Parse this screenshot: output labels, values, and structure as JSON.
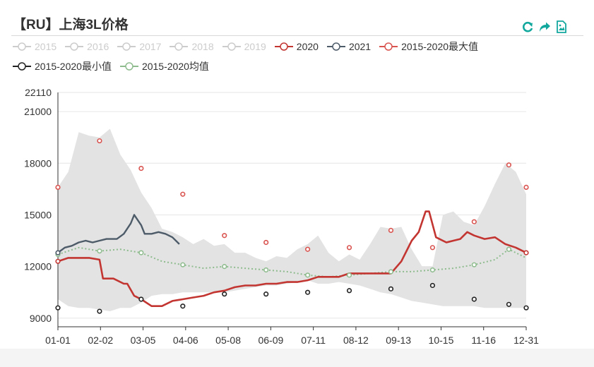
{
  "title": "【RU】上海3L价格",
  "toolbox": {
    "icons": [
      "restore-icon",
      "data-view-icon",
      "save-as-image-icon"
    ],
    "color": "#13a89e"
  },
  "legend": [
    {
      "name": "2015",
      "color": "#cccccc",
      "active": false
    },
    {
      "name": "2016",
      "color": "#cccccc",
      "active": false
    },
    {
      "name": "2017",
      "color": "#cccccc",
      "active": false
    },
    {
      "name": "2018",
      "color": "#cccccc",
      "active": false
    },
    {
      "name": "2019",
      "color": "#cccccc",
      "active": false
    },
    {
      "name": "2020",
      "color": "#c23531",
      "active": true
    },
    {
      "name": "2021",
      "color": "#4d5b69",
      "active": true
    },
    {
      "name": "2015-2020最大值",
      "color": "#d9534f",
      "active": true
    },
    {
      "name": "2015-2020最小值",
      "color": "#222222",
      "active": true
    },
    {
      "name": "2015-2020均值",
      "color": "#8fbc8f",
      "active": true
    }
  ],
  "chart_data": {
    "type": "line",
    "x_categories": [
      "01-01",
      "02-02",
      "03-05",
      "04-06",
      "05-08",
      "06-09",
      "07-11",
      "08-12",
      "09-13",
      "10-15",
      "11-16",
      "12-31"
    ],
    "y_ticks": [
      9000,
      12000,
      15000,
      18000,
      21000,
      22110
    ],
    "ylim": [
      8500,
      22110
    ],
    "grid": true,
    "band": {
      "name": "2015-2020范围",
      "color": "#e3e3e3",
      "upper": [
        [
          0,
          16600
        ],
        [
          3,
          17500
        ],
        [
          6,
          19800
        ],
        [
          9,
          19600
        ],
        [
          12,
          19500
        ],
        [
          15,
          20000
        ],
        [
          18,
          18500
        ],
        [
          21,
          17600
        ],
        [
          24,
          16300
        ],
        [
          27,
          15400
        ],
        [
          30,
          14200
        ],
        [
          33,
          14000
        ],
        [
          36,
          13700
        ],
        [
          39,
          13300
        ],
        [
          42,
          13600
        ],
        [
          45,
          13200
        ],
        [
          48,
          13300
        ],
        [
          51,
          12800
        ],
        [
          54,
          12800
        ],
        [
          57,
          12500
        ],
        [
          60,
          12300
        ],
        [
          63,
          12600
        ],
        [
          66,
          12500
        ],
        [
          69,
          13000
        ],
        [
          72,
          13300
        ],
        [
          75,
          13800
        ],
        [
          78,
          12800
        ],
        [
          81,
          12300
        ],
        [
          84,
          12700
        ],
        [
          87,
          12400
        ],
        [
          90,
          13300
        ],
        [
          93,
          14300
        ],
        [
          96,
          14200
        ],
        [
          99,
          14300
        ],
        [
          102,
          13000
        ],
        [
          105,
          12000
        ],
        [
          108,
          12000
        ],
        [
          111,
          15000
        ],
        [
          114,
          15200
        ],
        [
          117,
          14600
        ],
        [
          120,
          14400
        ],
        [
          123,
          15500
        ],
        [
          126,
          16800
        ],
        [
          129,
          18000
        ],
        [
          132,
          17500
        ],
        [
          135,
          16200
        ]
      ],
      "lower": [
        [
          0,
          10100
        ],
        [
          3,
          9700
        ],
        [
          6,
          9600
        ],
        [
          9,
          9600
        ],
        [
          12,
          9500
        ],
        [
          15,
          9400
        ],
        [
          18,
          9600
        ],
        [
          21,
          9600
        ],
        [
          24,
          9900
        ],
        [
          27,
          10300
        ],
        [
          30,
          10400
        ],
        [
          33,
          10400
        ],
        [
          36,
          10500
        ],
        [
          39,
          10500
        ],
        [
          42,
          10500
        ],
        [
          45,
          10500
        ],
        [
          48,
          10500
        ],
        [
          51,
          10600
        ],
        [
          54,
          10700
        ],
        [
          57,
          10800
        ],
        [
          60,
          10900
        ],
        [
          63,
          10900
        ],
        [
          66,
          11000
        ],
        [
          69,
          11100
        ],
        [
          72,
          11200
        ],
        [
          75,
          11000
        ],
        [
          78,
          11000
        ],
        [
          81,
          11100
        ],
        [
          84,
          11000
        ],
        [
          87,
          10900
        ],
        [
          90,
          10700
        ],
        [
          93,
          10500
        ],
        [
          96,
          10400
        ],
        [
          99,
          10200
        ],
        [
          102,
          10000
        ],
        [
          105,
          9900
        ],
        [
          108,
          9800
        ],
        [
          111,
          9700
        ],
        [
          114,
          9700
        ],
        [
          117,
          9700
        ],
        [
          120,
          9700
        ],
        [
          123,
          9600
        ],
        [
          126,
          9600
        ],
        [
          129,
          9600
        ],
        [
          132,
          9600
        ],
        [
          135,
          9600
        ]
      ]
    },
    "series": [
      {
        "name": "2020",
        "color": "#c23531",
        "points": [
          [
            0,
            12300
          ],
          [
            3,
            12500
          ],
          [
            6,
            12500
          ],
          [
            9,
            12500
          ],
          [
            12,
            12400
          ],
          [
            13,
            11300
          ],
          [
            16,
            11300
          ],
          [
            19,
            11000
          ],
          [
            20,
            11000
          ],
          [
            22,
            10300
          ],
          [
            24,
            10100
          ],
          [
            27,
            9700
          ],
          [
            30,
            9700
          ],
          [
            33,
            10000
          ],
          [
            36,
            10100
          ],
          [
            39,
            10200
          ],
          [
            42,
            10300
          ],
          [
            45,
            10500
          ],
          [
            48,
            10600
          ],
          [
            51,
            10800
          ],
          [
            54,
            10900
          ],
          [
            57,
            10900
          ],
          [
            60,
            11000
          ],
          [
            63,
            11000
          ],
          [
            66,
            11100
          ],
          [
            69,
            11100
          ],
          [
            72,
            11200
          ],
          [
            75,
            11400
          ],
          [
            78,
            11400
          ],
          [
            81,
            11400
          ],
          [
            84,
            11600
          ],
          [
            87,
            11600
          ],
          [
            90,
            11600
          ],
          [
            93,
            11600
          ],
          [
            96,
            11600
          ],
          [
            99,
            12300
          ],
          [
            102,
            13500
          ],
          [
            104,
            14000
          ],
          [
            106,
            15200
          ],
          [
            107,
            15200
          ],
          [
            109,
            13700
          ],
          [
            112,
            13400
          ],
          [
            114,
            13500
          ],
          [
            116,
            13600
          ],
          [
            118,
            14000
          ],
          [
            120,
            13800
          ],
          [
            123,
            13600
          ],
          [
            126,
            13700
          ],
          [
            129,
            13300
          ],
          [
            132,
            13100
          ],
          [
            135,
            12800
          ]
        ]
      },
      {
        "name": "2021",
        "color": "#4d5b69",
        "points": [
          [
            0,
            12800
          ],
          [
            2,
            13100
          ],
          [
            4,
            13200
          ],
          [
            6,
            13400
          ],
          [
            8,
            13500
          ],
          [
            10,
            13400
          ],
          [
            12,
            13500
          ],
          [
            14,
            13600
          ],
          [
            17,
            13600
          ],
          [
            19,
            13900
          ],
          [
            21,
            14500
          ],
          [
            22,
            15000
          ],
          [
            24,
            14400
          ],
          [
            25,
            13900
          ],
          [
            27,
            13900
          ],
          [
            29,
            14000
          ],
          [
            31,
            13900
          ],
          [
            33,
            13700
          ],
          [
            35,
            13300
          ]
        ]
      },
      {
        "name": "2015-2020最大值",
        "color": "#d9534f",
        "marker_points": [
          [
            0,
            16600
          ],
          [
            12,
            19300
          ],
          [
            24,
            17700
          ],
          [
            36,
            16200
          ],
          [
            48,
            13800
          ],
          [
            60,
            13400
          ],
          [
            72,
            13000
          ],
          [
            84,
            13100
          ],
          [
            96,
            14100
          ],
          [
            108,
            13100
          ],
          [
            120,
            14600
          ],
          [
            130,
            17900
          ],
          [
            135,
            16600
          ]
        ]
      },
      {
        "name": "2015-2020最小值",
        "color": "#222222",
        "marker_points": [
          [
            0,
            9600
          ],
          [
            12,
            9400
          ],
          [
            24,
            10100
          ],
          [
            36,
            9700
          ],
          [
            48,
            10400
          ],
          [
            60,
            10400
          ],
          [
            72,
            10500
          ],
          [
            84,
            10600
          ],
          [
            96,
            10700
          ],
          [
            108,
            10900
          ],
          [
            120,
            10100
          ],
          [
            130,
            9800
          ],
          [
            135,
            9600
          ]
        ]
      },
      {
        "name": "2015-2020均值",
        "color": "#8fbc8f",
        "points": [
          [
            0,
            12700
          ],
          [
            6,
            13100
          ],
          [
            12,
            12900
          ],
          [
            18,
            13000
          ],
          [
            24,
            12800
          ],
          [
            30,
            12300
          ],
          [
            36,
            12100
          ],
          [
            42,
            11900
          ],
          [
            48,
            12000
          ],
          [
            54,
            11900
          ],
          [
            60,
            11800
          ],
          [
            66,
            11700
          ],
          [
            72,
            11500
          ],
          [
            78,
            11400
          ],
          [
            84,
            11500
          ],
          [
            90,
            11600
          ],
          [
            96,
            11700
          ],
          [
            102,
            11700
          ],
          [
            108,
            11800
          ],
          [
            114,
            11900
          ],
          [
            120,
            12100
          ],
          [
            126,
            12400
          ],
          [
            130,
            13000
          ],
          [
            135,
            12500
          ]
        ]
      }
    ]
  }
}
